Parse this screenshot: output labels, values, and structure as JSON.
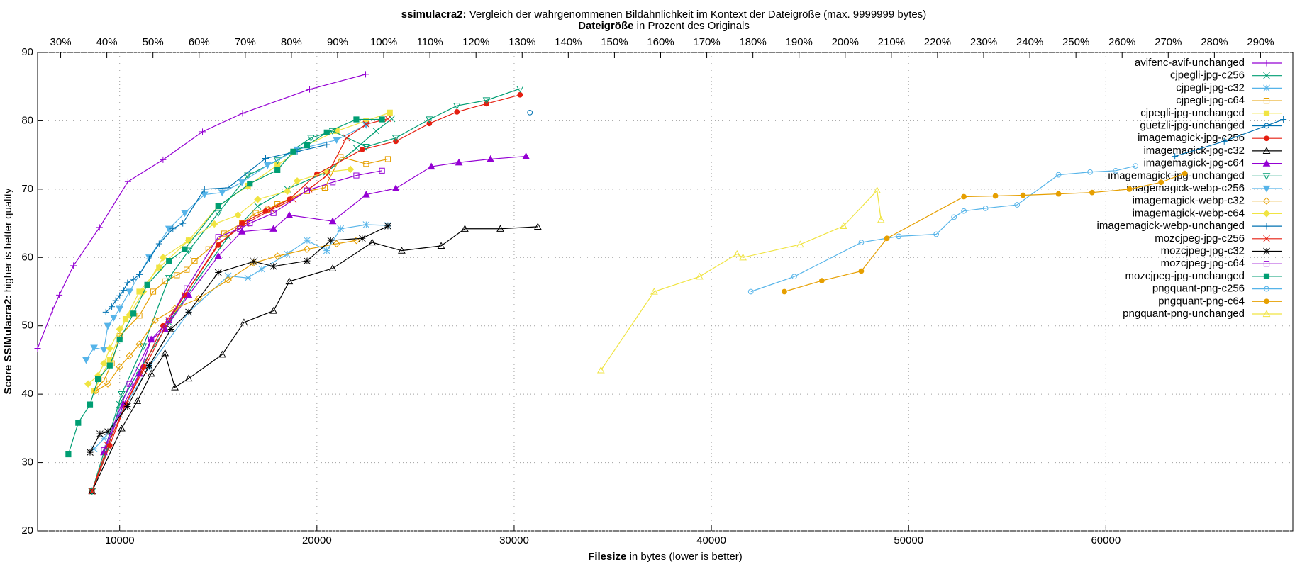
{
  "chart_data": {
    "type": "line",
    "title": {
      "bold": "ssimulacra2:",
      "text": "Vergleich der wahrgenommenen Bildähnlichkeit im Kontext der Dateigröße (max. 9999999 bytes)"
    },
    "x2_label": {
      "bold": "Dateigröße",
      "text": "in Prozent des Originals"
    },
    "x_label": {
      "bold": "Filesize",
      "text": "in bytes (lower is better)"
    },
    "y_label": {
      "bold": "Score SSIMulacra2:",
      "text": "higher is better quality"
    },
    "xlim": [
      5840,
      69480
    ],
    "xticks": [
      10000,
      20000,
      30000,
      40000,
      50000,
      60000
    ],
    "ylim": [
      20,
      90
    ],
    "yticks": [
      20,
      30,
      40,
      50,
      60,
      70,
      80,
      90
    ],
    "x2lim": [
      25,
      297
    ],
    "x2ticks": [
      {
        "value": 30,
        "label": "30%"
      },
      {
        "value": 40,
        "label": "40%"
      },
      {
        "value": 50,
        "label": "50%"
      },
      {
        "value": 60,
        "label": "60%"
      },
      {
        "value": 70,
        "label": "70%"
      },
      {
        "value": 80,
        "label": "80%"
      },
      {
        "value": 90,
        "label": "90%"
      },
      {
        "value": 100,
        "label": "100%"
      },
      {
        "value": 110,
        "label": "110%"
      },
      {
        "value": 120,
        "label": "120%"
      },
      {
        "value": 130,
        "label": "130%"
      },
      {
        "value": 140,
        "label": "140%"
      },
      {
        "value": 150,
        "label": "150%"
      },
      {
        "value": 160,
        "label": "160%"
      },
      {
        "value": 170,
        "label": "170%"
      },
      {
        "value": 180,
        "label": "180%"
      },
      {
        "value": 190,
        "label": "190%"
      },
      {
        "value": 200,
        "label": "200%"
      },
      {
        "value": 210,
        "label": "210%"
      },
      {
        "value": 220,
        "label": "220%"
      },
      {
        "value": 230,
        "label": "230%"
      },
      {
        "value": 240,
        "label": "240%"
      },
      {
        "value": 250,
        "label": "250%"
      },
      {
        "value": 260,
        "label": "260%"
      },
      {
        "value": 270,
        "label": "270%"
      },
      {
        "value": 280,
        "label": "280%"
      },
      {
        "value": 290,
        "label": "290%"
      }
    ],
    "grid": true,
    "legend": "top-right",
    "series": [
      {
        "name": "avifenc-avif-unchanged",
        "color": "#9400d3",
        "marker": "plus",
        "x": [
          5840,
          6600,
          6940,
          7660,
          8980,
          10420,
          12200,
          14200,
          16230,
          19630,
          22470
        ],
        "values": [
          46.7,
          52.3,
          54.5,
          58.8,
          64.4,
          71.1,
          74.3,
          78.4,
          81.1,
          84.6,
          86.8
        ]
      },
      {
        "name": "cjpegli-jpg-c256",
        "color": "#009e73",
        "marker": "cross",
        "x": [
          8600,
          9400,
          10000,
          11000,
          12500,
          14000,
          15500,
          17000,
          18500,
          20500,
          22000,
          23000,
          23800
        ],
        "values": [
          25.8,
          32,
          38.5,
          43.5,
          50.5,
          57,
          63,
          67.5,
          70,
          72.5,
          76,
          78.5,
          80.3
        ]
      },
      {
        "name": "cjpegli-jpg-c32",
        "color": "#56b4e9",
        "marker": "star",
        "x": [
          8700,
          9200,
          10000,
          11500,
          13500,
          15500,
          16500,
          17200,
          18500,
          19500,
          20500,
          21200,
          22500,
          23600
        ],
        "values": [
          32,
          33.5,
          37,
          44,
          52,
          57.3,
          57,
          58.3,
          60.5,
          62.5,
          61,
          64.2,
          64.8,
          64.7
        ]
      },
      {
        "name": "cjpegli-jpg-c64",
        "color": "#e69f00",
        "marker": "square",
        "x": [
          8700,
          9200,
          9600,
          10000,
          11000,
          11700,
          12300,
          12900,
          13400,
          13800,
          14500,
          15300,
          16200,
          16900,
          17500,
          18000,
          19500,
          20400,
          21200,
          22500,
          23600
        ],
        "values": [
          40.5,
          42,
          44.5,
          48.5,
          51.5,
          55,
          56.5,
          57.4,
          58.2,
          59.5,
          61.2,
          63.5,
          65,
          66.5,
          67,
          67.8,
          69.7,
          70.2,
          74.7,
          73.7,
          74.4
        ]
      },
      {
        "name": "cjpegli-jpg-unchanged",
        "color": "#f0e442",
        "marker": "square-filled",
        "x": [
          8700,
          9500,
          10300,
          11000,
          12000,
          13500,
          15000,
          16500,
          18000,
          19500,
          21000,
          22500,
          23700
        ],
        "values": [
          40.5,
          45,
          51,
          55,
          58.5,
          62.5,
          67.5,
          70.5,
          73.5,
          76.5,
          78.5,
          80,
          81.2
        ]
      },
      {
        "name": "guetzli-jpg-unchanged",
        "color": "#0072b2",
        "marker": "circle",
        "x": [
          30800
        ],
        "values": [
          81.2
        ]
      },
      {
        "name": "imagemagick-jpg-c256",
        "color": "#e51e10",
        "marker": "circle-filled",
        "x": [
          8600,
          9500,
          10300,
          11200,
          12200,
          13300,
          15000,
          16200,
          17400,
          18600,
          20000,
          22300,
          24000,
          25700,
          27100,
          28600,
          30300
        ],
        "values": [
          25.8,
          32.5,
          38.5,
          44,
          50,
          54.5,
          61.8,
          65,
          66.8,
          68.5,
          72.2,
          75.8,
          77,
          79.6,
          81.3,
          82.5,
          83.8
        ]
      },
      {
        "name": "imagemagick-jpg-c32",
        "color": "#000000",
        "marker": "triangle",
        "x": [
          8600,
          10100,
          10900,
          11600,
          12300,
          12800,
          13500,
          15200,
          16300,
          17800,
          18600,
          20800,
          22800,
          24300,
          26300,
          27500,
          29300,
          31200
        ],
        "values": [
          25.8,
          35,
          39,
          43,
          46,
          41,
          42.3,
          45.8,
          50.5,
          52.2,
          56.5,
          58.4,
          62.2,
          61,
          61.7,
          64.2,
          64.2,
          64.5
        ]
      },
      {
        "name": "imagemagick-jpg-c64",
        "color": "#9400d3",
        "marker": "triangle-filled",
        "x": [
          9200,
          10200,
          11000,
          11600,
          12300,
          13500,
          15000,
          16200,
          17800,
          18600,
          20800,
          22500,
          24000,
          25800,
          27200,
          28800,
          30600
        ],
        "values": [
          31.5,
          38.5,
          43,
          48,
          49.5,
          54.5,
          60.2,
          63.8,
          64.2,
          66.2,
          65.3,
          69.2,
          70.1,
          73.3,
          73.9,
          74.4,
          74.8
        ]
      },
      {
        "name": "imagemagick-jpg-unchanged",
        "color": "#009e73",
        "marker": "invtriangle",
        "x": [
          8600,
          10100,
          11200,
          12500,
          13500,
          15000,
          16500,
          18000,
          19700,
          20800,
          22500,
          24000,
          25700,
          27100,
          28600,
          30300
        ],
        "values": [
          25.8,
          40,
          47,
          57,
          61,
          66.5,
          72,
          74.2,
          77.5,
          78.5,
          76.2,
          77.5,
          80.2,
          82.2,
          83,
          84.7
        ]
      },
      {
        "name": "imagemagick-webp-c256",
        "color": "#56b4e9",
        "marker": "invtriangle-filled",
        "x": [
          8300,
          8700,
          9200,
          9400,
          9700,
          10000,
          10500,
          11500,
          12500,
          13300,
          14300,
          15200,
          16200,
          17500,
          19000,
          21000,
          22500
        ],
        "values": [
          45,
          46.8,
          46.5,
          50,
          51.2,
          52.5,
          55,
          60,
          64.2,
          66.5,
          69.2,
          69.5,
          71,
          73.5,
          75.8,
          77.2,
          79.4
        ]
      },
      {
        "name": "imagemagick-webp-c32",
        "color": "#e69f00",
        "marker": "diamond",
        "x": [
          8800,
          9400,
          10000,
          10500,
          11000,
          11800,
          12800,
          14000,
          15500,
          16800,
          18000,
          19500,
          21000,
          22000
        ],
        "values": [
          40.5,
          41.5,
          44,
          45.6,
          47.3,
          50.8,
          52.5,
          54,
          56.7,
          59.2,
          60.2,
          61.2,
          62,
          62.5
        ]
      },
      {
        "name": "imagemagick-webp-c64",
        "color": "#f0e442",
        "marker": "diamond-filled",
        "x": [
          8400,
          8900,
          9200,
          9500,
          10000,
          10500,
          11200,
          12200,
          13500,
          14800,
          16000,
          17000,
          18500,
          19000,
          20500,
          21700
        ],
        "values": [
          41.5,
          42.7,
          44.5,
          46.7,
          49.5,
          51.6,
          55,
          60,
          62.5,
          64.9,
          66.2,
          68.5,
          69.7,
          71.2,
          72.5,
          72.9
        ]
      },
      {
        "name": "imagemagick-webp-unchanged",
        "color": "#0072b2",
        "marker": "plus",
        "x": [
          9300,
          9600,
          9800,
          10000,
          10200,
          10400,
          10700,
          11000,
          11500,
          12000,
          12700,
          13200,
          14300,
          15500,
          17400,
          19000,
          20500,
          null,
          63500,
          66000,
          69000
        ],
        "values": [
          52,
          52.8,
          53.7,
          54.4,
          55.2,
          56.3,
          56.8,
          57.5,
          59.8,
          62,
          64.2,
          65,
          70,
          70.2,
          74.5,
          75.5,
          76.5,
          null,
          74.8,
          77,
          80.2
        ]
      },
      {
        "name": "mozcjpeg-jpg-c256",
        "color": "#e51e10",
        "marker": "cross",
        "x": [
          8600,
          9400,
          10300,
          11200,
          12500,
          13300,
          15000,
          16400,
          17700,
          18800,
          19600,
          20500,
          21500,
          22500,
          23600
        ],
        "values": [
          25.8,
          32.5,
          38.5,
          43.5,
          50.8,
          54.5,
          62,
          65,
          67,
          68.5,
          70,
          72,
          77.5,
          79.5,
          80.3
        ]
      },
      {
        "name": "mozcjpeg-jpg-c32",
        "color": "#000000",
        "marker": "star",
        "x": [
          8500,
          9000,
          9400,
          10400,
          11500,
          12600,
          13500,
          15000,
          16800,
          17800,
          19500,
          20700,
          22300,
          23600
        ],
        "values": [
          31.5,
          34.2,
          34.5,
          38.2,
          44.2,
          49.5,
          52,
          57.8,
          59.4,
          58.7,
          59.5,
          62.5,
          62.8,
          64.6
        ]
      },
      {
        "name": "mozcjpeg-jpg-c64",
        "color": "#9400d3",
        "marker": "square",
        "x": [
          9200,
          10500,
          11600,
          12500,
          13400,
          15000,
          16100,
          16600,
          17800,
          19500,
          20800,
          22000,
          23300
        ],
        "values": [
          31.8,
          41.5,
          48,
          50.8,
          55.5,
          63,
          64.2,
          65,
          66.5,
          69.8,
          71,
          72,
          72.7
        ]
      },
      {
        "name": "mozcjpeg-jpg-unchanged",
        "color": "#009e73",
        "marker": "square-filled",
        "x": [
          7400,
          7900,
          8500,
          8900,
          9500,
          10000,
          10700,
          11400,
          12500,
          13300,
          15000,
          16600,
          18000,
          18800,
          19500,
          20500,
          22000,
          23300
        ],
        "values": [
          31.2,
          35.8,
          38.5,
          42.2,
          44.2,
          48,
          51.8,
          56,
          59.5,
          61.2,
          67.5,
          70.8,
          72.8,
          75.5,
          76.4,
          78.3,
          80.2,
          80.2
        ]
      },
      {
        "name": "pngquant-png-c256",
        "color": "#56b4e9",
        "marker": "circle",
        "x": [
          42000,
          44200,
          47600,
          49500,
          51400,
          52300,
          52800,
          53900,
          55500,
          57600,
          59200,
          60500,
          61500
        ],
        "values": [
          55,
          57.2,
          62.2,
          63.1,
          63.4,
          65.9,
          66.8,
          67.2,
          67.7,
          72.1,
          72.5,
          72.7,
          73.4
        ]
      },
      {
        "name": "pngquant-png-c64",
        "color": "#e69f00",
        "marker": "circle-filled",
        "x": [
          43700,
          45600,
          47600,
          48900,
          52800,
          54400,
          55800,
          57600,
          59300,
          61200,
          62800,
          64000
        ],
        "values": [
          55,
          56.6,
          58,
          62.8,
          68.9,
          69,
          69.1,
          69.3,
          69.5,
          70,
          71,
          72.3
        ]
      },
      {
        "name": "pngquant-png-unchanged",
        "color": "#f0e442",
        "marker": "triangle",
        "x": [
          34400,
          37100,
          39400,
          41300,
          41600,
          44500,
          46700,
          48400,
          48600
        ],
        "values": [
          43.5,
          55,
          57.2,
          60.5,
          60,
          61.9,
          64.6,
          69.8,
          65.5
        ]
      }
    ]
  }
}
